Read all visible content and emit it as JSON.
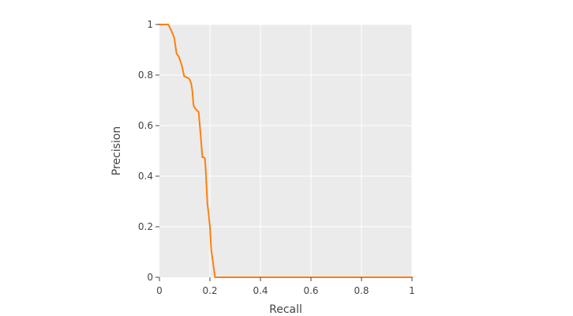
{
  "chart_data": {
    "type": "line",
    "title": "",
    "xlabel": "Recall",
    "ylabel": "Precision",
    "xlim": [
      0,
      1
    ],
    "ylim": [
      0,
      1
    ],
    "xticks": [
      0,
      0.2,
      0.4,
      0.6,
      0.8,
      1
    ],
    "yticks": [
      0,
      0.2,
      0.4,
      0.6,
      0.8,
      1
    ],
    "xtick_labels": [
      "0",
      "0.2",
      "0.4",
      "0.6",
      "0.8",
      "1"
    ],
    "ytick_labels": [
      "0",
      "0.2",
      "0.4",
      "0.6",
      "0.8",
      "1"
    ],
    "grid": true,
    "legend": false,
    "plot_background": "#ebebeb",
    "grid_color": "#ffffff",
    "series": [
      {
        "color": "#ff7f0e",
        "x": [
          0,
          0.035,
          0.045,
          0.058,
          0.068,
          0.078,
          0.088,
          0.098,
          0.11,
          0.118,
          0.125,
          0.13,
          0.135,
          0.14,
          0.148,
          0.155,
          0.16,
          0.165,
          0.17,
          0.175,
          0.18,
          0.183,
          0.19,
          0.195,
          0.2,
          0.205,
          0.22,
          0.225,
          0.4,
          0.6,
          0.8,
          1
        ],
        "y": [
          1,
          1,
          0.98,
          0.95,
          0.885,
          0.87,
          0.84,
          0.795,
          0.79,
          0.785,
          0.77,
          0.74,
          0.68,
          0.67,
          0.66,
          0.655,
          0.6,
          0.54,
          0.475,
          0.475,
          0.47,
          0.43,
          0.29,
          0.25,
          0.2,
          0.11,
          0,
          0,
          0,
          0,
          0,
          0
        ]
      }
    ]
  }
}
